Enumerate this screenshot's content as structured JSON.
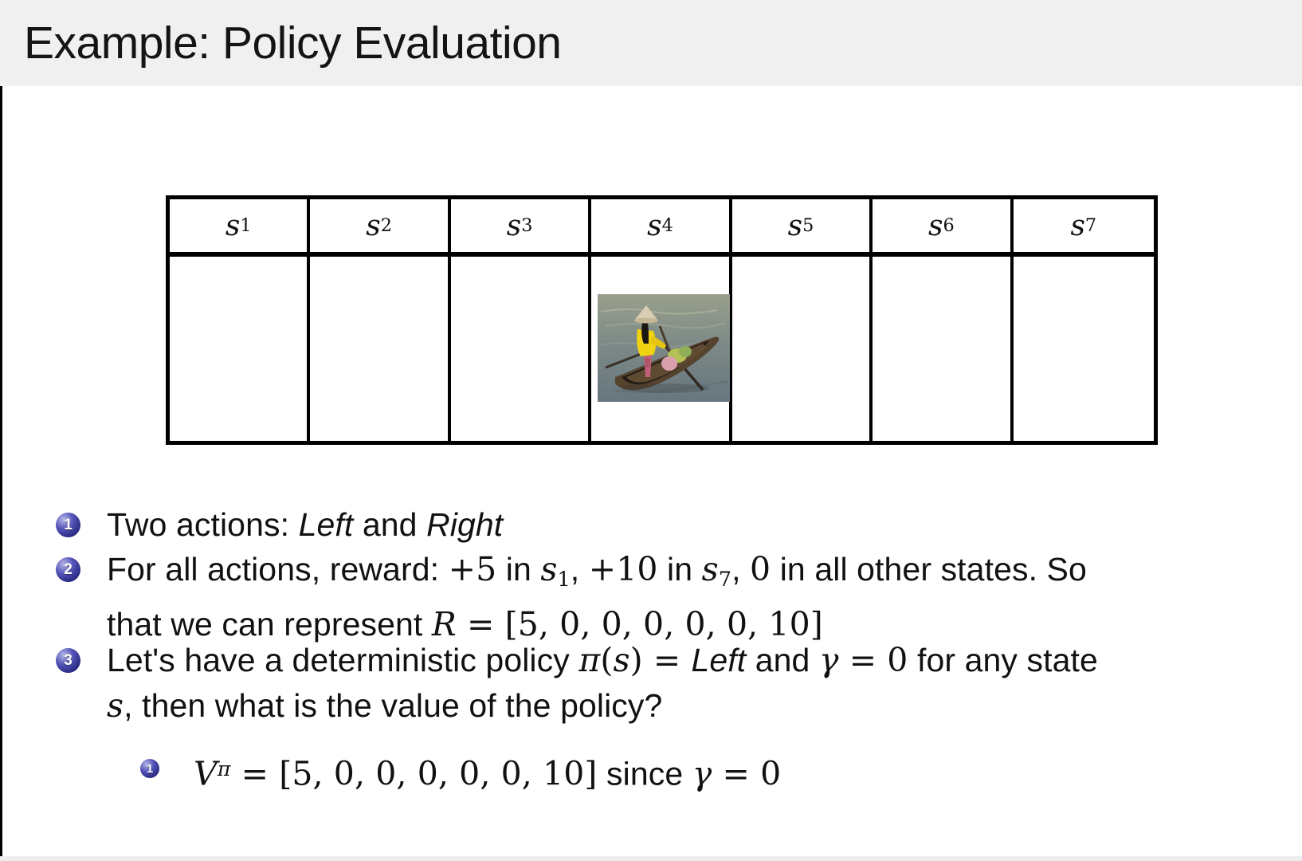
{
  "slide": {
    "title": "Example: Policy Evaluation"
  },
  "colors": {
    "title_bar_bg": "#f0f0f0",
    "bullet_marker": "#3b3b9e",
    "table_border": "#000000"
  },
  "table": {
    "headers": [
      [
        {
          "t": "s",
          "s": "mi"
        },
        {
          "t": "1",
          "s": "msub"
        }
      ],
      [
        {
          "t": "s",
          "s": "mi"
        },
        {
          "t": "2",
          "s": "msub"
        }
      ],
      [
        {
          "t": "s",
          "s": "mi"
        },
        {
          "t": "3",
          "s": "msub"
        }
      ],
      [
        {
          "t": "s",
          "s": "mi"
        },
        {
          "t": "4",
          "s": "msub"
        }
      ],
      [
        {
          "t": "s",
          "s": "mi"
        },
        {
          "t": "5",
          "s": "msub"
        }
      ],
      [
        {
          "t": "s",
          "s": "mi"
        },
        {
          "t": "6",
          "s": "msub"
        }
      ],
      [
        {
          "t": "s",
          "s": "mi"
        },
        {
          "t": "7",
          "s": "msub"
        }
      ]
    ],
    "agent_image": "woman-rowing-wooden-boat-photo",
    "agent_image_column": 4
  },
  "bullets": [
    {
      "marker": "1",
      "line1": [
        {
          "t": "Two actions: ",
          "s": "n"
        },
        {
          "t": "Left",
          "s": "it"
        },
        {
          "t": " and ",
          "s": "n"
        },
        {
          "t": "Right",
          "s": "it"
        }
      ]
    },
    {
      "marker": "2",
      "line1": [
        {
          "t": "For all actions, reward: ",
          "s": "n"
        },
        {
          "t": "+5",
          "s": "m"
        },
        {
          "t": " in ",
          "s": "n"
        },
        {
          "t": "s",
          "s": "mi"
        },
        {
          "t": "1",
          "s": "msub"
        },
        {
          "t": ", ",
          "s": "n"
        },
        {
          "t": "+10",
          "s": "m"
        },
        {
          "t": " in ",
          "s": "n"
        },
        {
          "t": "s",
          "s": "mi"
        },
        {
          "t": "7",
          "s": "msub"
        },
        {
          "t": ", ",
          "s": "n"
        },
        {
          "t": "0",
          "s": "m"
        },
        {
          "t": " in all other states. So",
          "s": "n"
        }
      ],
      "line2": [
        {
          "t": "that we can represent ",
          "s": "n"
        },
        {
          "t": "R",
          "s": "mi"
        },
        {
          "t": " = [5, 0, 0, 0, 0, 0, 10]",
          "s": "m"
        }
      ]
    },
    {
      "marker": "3",
      "line1": [
        {
          "t": "Let's have a deterministic policy ",
          "s": "n"
        },
        {
          "t": "π",
          "s": "mi"
        },
        {
          "t": "(",
          "s": "m"
        },
        {
          "t": "s",
          "s": "mi"
        },
        {
          "t": ") = ",
          "s": "m"
        },
        {
          "t": "Left",
          "s": "it"
        },
        {
          "t": " and ",
          "s": "n"
        },
        {
          "t": "γ",
          "s": "mi"
        },
        {
          "t": " = 0",
          "s": "m"
        },
        {
          "t": " for any state",
          "s": "n"
        }
      ],
      "line2": [
        {
          "t": "s",
          "s": "mi"
        },
        {
          "t": ", then what is the value of the policy?",
          "s": "n"
        }
      ]
    }
  ],
  "sub_bullet": {
    "marker": "1",
    "line1": [
      {
        "t": "V",
        "s": "mi"
      },
      {
        "t": "π",
        "s": "supmi"
      },
      {
        "t": " = [5, 0, 0, 0, 0, 0, 10]",
        "s": "m"
      },
      {
        "t": " since ",
        "s": "n"
      },
      {
        "t": "γ",
        "s": "mi"
      },
      {
        "t": " = 0",
        "s": "m"
      }
    ]
  }
}
